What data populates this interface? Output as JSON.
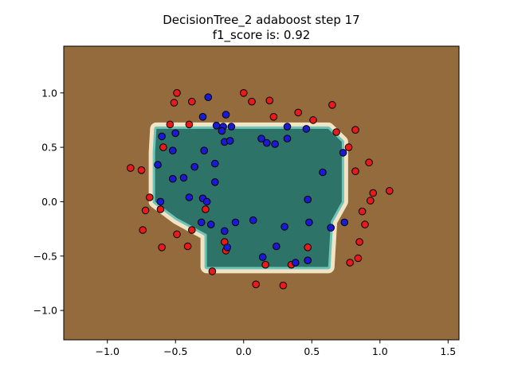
{
  "chart_data": {
    "type": "scatter",
    "title": "DecisionTree_2 adaboost step 17",
    "subtitle": "f1_score is: 0.92",
    "xlabel": "",
    "ylabel": "",
    "xlim": [
      -1.32,
      1.58
    ],
    "ylim": [
      -1.27,
      1.43
    ],
    "xticks": [
      -1.0,
      -0.5,
      0.0,
      0.5,
      1.0,
      1.5
    ],
    "xtick_labels": [
      "−1.0",
      "−0.5",
      "0.0",
      "0.5",
      "1.0",
      "1.5"
    ],
    "yticks": [
      -1.0,
      -0.5,
      0.0,
      0.5,
      1.0
    ],
    "ytick_labels": [
      "−1.0",
      "−0.5",
      "0.0",
      "0.5",
      "1.0"
    ],
    "grid": false,
    "colors": {
      "background_region": "#936b3c",
      "inner_region": "#2e7368",
      "boundary_light": "#f3e3c5",
      "boundary_teal": "#6cc5b8",
      "class_red": "#e81a1a",
      "class_blue": "#1a1ad6",
      "marker_edge": "#000000"
    },
    "decision_region": [
      [
        -0.64,
        0.67
      ],
      [
        0.62,
        0.67
      ],
      [
        0.72,
        0.55
      ],
      [
        0.72,
        0.0
      ],
      [
        0.64,
        -0.18
      ],
      [
        0.62,
        -0.6
      ],
      [
        -0.27,
        -0.6
      ],
      [
        -0.27,
        -0.3
      ],
      [
        -0.49,
        -0.15
      ],
      [
        -0.65,
        0.0
      ],
      [
        -0.65,
        0.45
      ]
    ],
    "series": [
      {
        "class": "red",
        "points": [
          [
            -0.49,
            1.0
          ],
          [
            -0.51,
            0.91
          ],
          [
            -0.38,
            0.92
          ],
          [
            -0.54,
            0.71
          ],
          [
            -0.4,
            0.71
          ],
          [
            -0.59,
            0.5
          ],
          [
            -0.83,
            0.31
          ],
          [
            -0.75,
            0.29
          ],
          [
            -0.69,
            0.04
          ],
          [
            -0.72,
            -0.08
          ],
          [
            -0.61,
            -0.07
          ],
          [
            -0.74,
            -0.26
          ],
          [
            -0.49,
            -0.3
          ],
          [
            -0.38,
            -0.26
          ],
          [
            -0.41,
            -0.41
          ],
          [
            -0.6,
            -0.42
          ],
          [
            -0.28,
            -0.07
          ],
          [
            -0.23,
            -0.64
          ],
          [
            -0.14,
            -0.37
          ],
          [
            -0.13,
            -0.45
          ],
          [
            0.0,
            1.0
          ],
          [
            0.06,
            0.92
          ],
          [
            0.19,
            0.93
          ],
          [
            0.22,
            0.78
          ],
          [
            0.4,
            0.82
          ],
          [
            0.51,
            0.75
          ],
          [
            0.65,
            0.89
          ],
          [
            0.68,
            0.64
          ],
          [
            0.82,
            0.66
          ],
          [
            0.77,
            0.5
          ],
          [
            0.82,
            0.28
          ],
          [
            0.92,
            0.36
          ],
          [
            0.95,
            0.08
          ],
          [
            0.93,
            0.01
          ],
          [
            1.07,
            0.1
          ],
          [
            0.87,
            -0.09
          ],
          [
            0.89,
            -0.21
          ],
          [
            0.85,
            -0.37
          ],
          [
            0.78,
            -0.56
          ],
          [
            0.84,
            -0.52
          ],
          [
            0.47,
            -0.42
          ],
          [
            0.35,
            -0.58
          ],
          [
            0.16,
            -0.58
          ],
          [
            0.09,
            -0.76
          ],
          [
            0.29,
            -0.77
          ]
        ]
      },
      {
        "class": "blue",
        "points": [
          [
            -0.26,
            0.96
          ],
          [
            -0.13,
            0.8
          ],
          [
            -0.3,
            0.78
          ],
          [
            -0.2,
            0.7
          ],
          [
            -0.15,
            0.69
          ],
          [
            -0.09,
            0.69
          ],
          [
            -0.16,
            0.65
          ],
          [
            -0.14,
            0.55
          ],
          [
            -0.1,
            0.56
          ],
          [
            -0.29,
            0.47
          ],
          [
            -0.6,
            0.6
          ],
          [
            -0.5,
            0.63
          ],
          [
            -0.52,
            0.47
          ],
          [
            -0.63,
            0.34
          ],
          [
            -0.36,
            0.32
          ],
          [
            -0.44,
            0.22
          ],
          [
            -0.21,
            0.35
          ],
          [
            -0.21,
            0.18
          ],
          [
            -0.52,
            0.21
          ],
          [
            -0.61,
            0.0
          ],
          [
            -0.4,
            0.04
          ],
          [
            -0.3,
            0.03
          ],
          [
            -0.27,
            0.0
          ],
          [
            -0.31,
            -0.19
          ],
          [
            -0.24,
            -0.21
          ],
          [
            -0.14,
            -0.27
          ],
          [
            -0.12,
            -0.42
          ],
          [
            -0.06,
            -0.19
          ],
          [
            0.07,
            -0.17
          ],
          [
            0.13,
            0.58
          ],
          [
            0.17,
            0.54
          ],
          [
            0.23,
            0.53
          ],
          [
            0.32,
            0.69
          ],
          [
            0.46,
            0.67
          ],
          [
            0.32,
            0.58
          ],
          [
            0.58,
            0.27
          ],
          [
            0.73,
            0.45
          ],
          [
            0.47,
            0.02
          ],
          [
            0.48,
            -0.19
          ],
          [
            0.64,
            -0.24
          ],
          [
            0.74,
            -0.19
          ],
          [
            0.3,
            -0.23
          ],
          [
            0.24,
            -0.41
          ],
          [
            0.14,
            -0.51
          ],
          [
            0.38,
            -0.56
          ],
          [
            0.47,
            -0.54
          ]
        ]
      }
    ]
  }
}
